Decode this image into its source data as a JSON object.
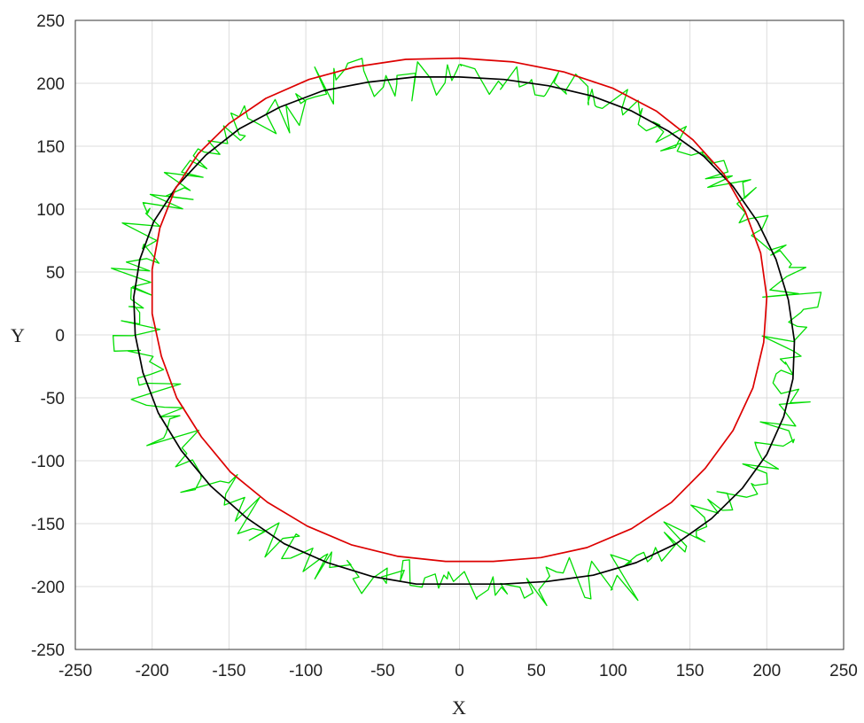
{
  "chart_data": {
    "type": "line",
    "title": "",
    "xlabel": "X",
    "ylabel": "Y",
    "xlim": [
      -250,
      250
    ],
    "ylim": [
      -250,
      250
    ],
    "xticks": [
      -250,
      -200,
      -150,
      -100,
      -50,
      0,
      50,
      100,
      150,
      200,
      250
    ],
    "yticks": [
      -250,
      -200,
      -150,
      -100,
      -50,
      0,
      50,
      100,
      150,
      200,
      250
    ],
    "grid": true,
    "legend": "none",
    "series": [
      {
        "color": "#00dd00",
        "style": "noisy",
        "x": [
          0,
          29,
          58,
          86,
          112,
          136,
          159,
          178,
          194,
          206,
          214,
          218,
          217,
          211,
          200,
          184,
          164,
          141,
          115,
          87,
          57,
          28,
          0,
          -28,
          -57,
          -86,
          -114,
          -139,
          -162,
          -181,
          -196,
          -206,
          -211,
          -212,
          -208,
          -199,
          -184,
          -165,
          -143,
          -117,
          -89,
          -59,
          -29,
          0
        ],
        "y": [
          205,
          203,
          198,
          190,
          178,
          162,
          142,
          118,
          90,
          60,
          28,
          -5,
          -35,
          -65,
          -95,
          -122,
          -146,
          -166,
          -181,
          -191,
          -196,
          -198,
          -198,
          -198,
          -192,
          -181,
          -166,
          -145,
          -120,
          -92,
          -62,
          -30,
          0,
          30,
          60,
          90,
          118,
          143,
          164,
          181,
          194,
          201,
          205,
          205
        ]
      },
      {
        "color": "#000000",
        "style": "solid",
        "x": [
          0,
          29,
          58,
          86,
          112,
          136,
          159,
          178,
          194,
          206,
          214,
          218,
          217,
          211,
          200,
          184,
          164,
          141,
          115,
          87,
          57,
          28,
          0,
          -28,
          -57,
          -86,
          -114,
          -139,
          -162,
          -181,
          -196,
          -206,
          -211,
          -212,
          -208,
          -199,
          -184,
          -165,
          -143,
          -117,
          -89,
          -59,
          -29,
          0
        ],
        "y": [
          205,
          203,
          198,
          190,
          178,
          162,
          142,
          118,
          90,
          60,
          28,
          -5,
          -35,
          -65,
          -95,
          -122,
          -146,
          -166,
          -181,
          -191,
          -196,
          -198,
          -198,
          -198,
          -192,
          -181,
          -166,
          -145,
          -120,
          -92,
          -62,
          -30,
          0,
          30,
          60,
          90,
          118,
          143,
          164,
          181,
          194,
          201,
          205,
          205
        ]
      },
      {
        "color": "#dd0000",
        "style": "solid",
        "x": [
          0,
          35,
          68,
          100,
          128,
          152,
          172,
          186,
          196,
          200,
          198,
          191,
          178,
          160,
          138,
          112,
          83,
          53,
          22,
          -9,
          -40,
          -70,
          -99,
          -125,
          -149,
          -168,
          -184,
          -194,
          -200,
          -200,
          -195,
          -185,
          -170,
          -150,
          -126,
          -98,
          -68,
          -35,
          0
        ],
        "y": [
          220,
          217,
          209,
          196,
          178,
          155,
          128,
          98,
          65,
          30,
          -6,
          -42,
          -76,
          -106,
          -133,
          -154,
          -169,
          -177,
          -180,
          -180,
          -176,
          -167,
          -152,
          -133,
          -109,
          -81,
          -50,
          -17,
          17,
          52,
          85,
          116,
          144,
          168,
          188,
          203,
          213,
          219,
          220
        ]
      }
    ]
  }
}
